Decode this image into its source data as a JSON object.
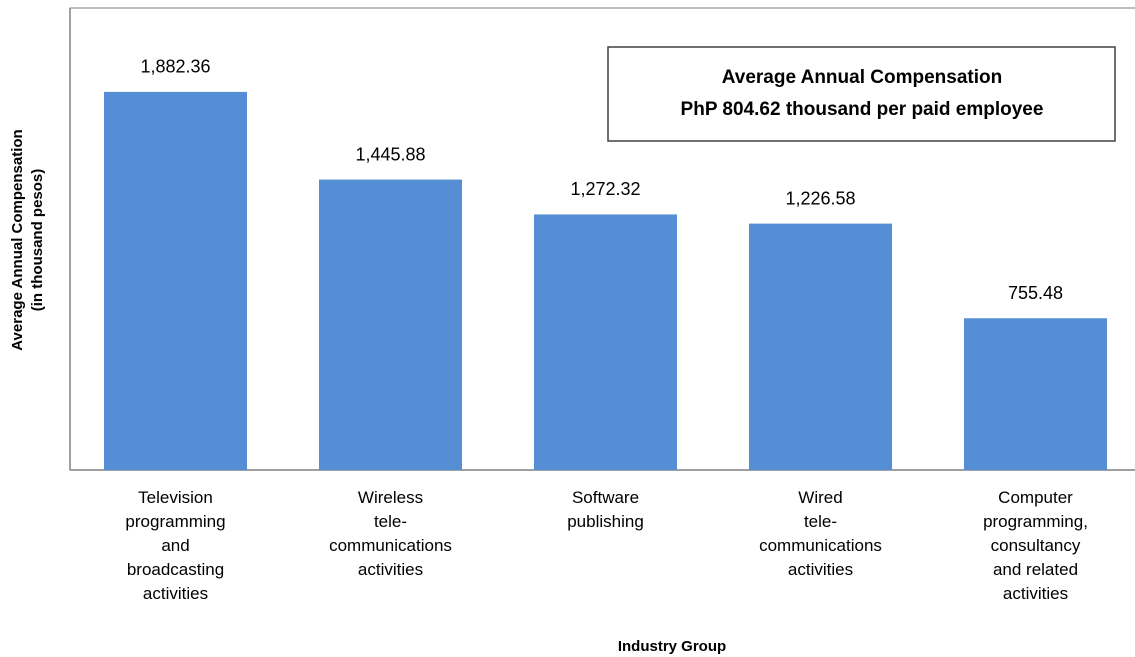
{
  "chart_data": {
    "type": "bar",
    "categories": [
      "Television\nprogramming\nand\nbroadcasting\nactivities",
      "Wireless\ntele-\ncommunications\nactivities",
      "Software\npublishing",
      "Wired\ntele-\ncommunications\nactivities",
      "Computer\nprogramming,\nconsultancy\nand related\nactivities"
    ],
    "values": [
      1882.36,
      1445.88,
      1272.32,
      1226.58,
      755.48
    ],
    "value_labels": [
      "1,882.36",
      "1,445.88",
      "1,272.32",
      "1,226.58",
      "755.48"
    ],
    "color": "#558ed5",
    "ylim": [
      0,
      2300
    ],
    "y_label": [
      "Average Annual Compensation",
      "(in thousand pesos)"
    ],
    "x_label": "Industry Group",
    "annotation": [
      "Average Annual Compensation",
      "PhP 804.62 thousand per paid employee"
    ]
  }
}
